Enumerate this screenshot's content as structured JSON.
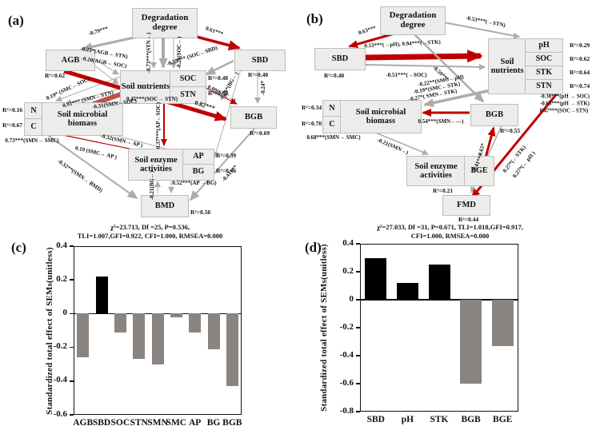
{
  "panel_a": {
    "label": "(a)",
    "boxes": {
      "degradation": "Degradation degree",
      "agb": "AGB",
      "sbd": "SBD",
      "soil_nutrients": "Soil nutrients",
      "soc": "SOC",
      "stn": "STN",
      "n": "N",
      "c": "C",
      "smb": "Soil microbial biomass",
      "bgb": "BGB",
      "enzyme": "Soil enzyme activities",
      "ap": "AP",
      "bg": "BG",
      "bmd": "BMD"
    },
    "r2": {
      "agb": "R²=0.62",
      "sbd": "R²=0.40",
      "soc": "R²=0.48",
      "stn": "R²=0.79",
      "n": "R²=0.16",
      "c": "R²=0.67",
      "bgb": "R²=0.69",
      "ap": "R²=0.39",
      "bg": "R²=0.46",
      "bmd": "R²=0.50"
    },
    "edges": {
      "deg_agb": "-0.79***",
      "deg_sbd": "0.61***",
      "agb_stn": "-0.23*(AGB→ STN)",
      "agb_soc": "-0.20(AGB→ SOC)",
      "deg_stn": "-0.73***(STN←)",
      "deg_soc": "-0.26(SOC←)",
      "sbd_soc": "-0.59*** (SOC←SBD)",
      "smc_soc": "0.19* (SMC←SOC)",
      "smn_stn": "0.91*** (SMN←STN)",
      "smn_soc": "-0.31(SMN←SOC)",
      "soc_stn": "0.45***(SOC→ STN)",
      "soc_bgb": "0.09(SOC→)",
      "sbd_bg": "-0.26*(BG←)",
      "sbd_bgb": "-0.24*",
      "agb_bgb": "0.82***",
      "smn_smc": "0.73***(SMN→ SMC)",
      "smn_ap": "-0.32(SMN→ AP )",
      "smc_ap": "0.19 (SMC→ AP )",
      "ap_soc": "0.37***(AP←SOC)",
      "ap_bg": "0.52***(AP →BG)",
      "bg_bmd": "-0.21(BG←)",
      "smn_bmd": "-0.32**(SMN→ BMD)",
      "bgb_bmd": "-0.41***"
    },
    "stats1": "χ²=23.713, Df =25, P=0.536,",
    "stats2": "TLI=1.007,GFI=0.922, CFI=1.000, RMSEA=0.000"
  },
  "panel_b": {
    "label": "(b)",
    "boxes": {
      "degradation": "Degradation degree",
      "sbd": "SBD",
      "soil_nutrients": "Soil nutrients",
      "ph": "pH",
      "soc": "SOC",
      "stk": "STK",
      "stn": "STN",
      "n": "N",
      "c": "C",
      "smb": "Soil microbial biomass",
      "bgb": "BGB",
      "enzyme": "Soil enzyme activities",
      "bge": "BGE",
      "fmd": "FMD"
    },
    "r2": {
      "sbd": "R²=0.40",
      "ph": "R²=0.29",
      "soc": "R²=0.62",
      "stk": "R²=0.64",
      "stn": "R²=0.74",
      "n": "R²=0.34",
      "c": "R²=0.70",
      "bgb": "R²=0.55",
      "bge": "R²=0.21",
      "fmd": "R²=0.44"
    },
    "edges": {
      "deg_sbd": "0.63***",
      "deg_stn": "-0.53***(→STN)",
      "sbd_ph_stk": "0.53***(→pH), 0.94***(→STK)",
      "sbd_soc": "-0.51***(→SOC)",
      "deg_bgb": "-0.59***",
      "smc_ph": "-0.22**(SMC←pH)",
      "smc_stk": "-0.19*(SMC←STK)",
      "smn_stk": "-0.27*( SMN←STK)",
      "bgb_smn": "0.54***(SMN←—)",
      "smn_smc": "0.68***(SMN→ SMC)",
      "smn_enz": "-0.21(SMN→)",
      "bge_bgb": "0.65*",
      "bgb_fmd": "-0.41***",
      "fmd_stk": "0.27*(←STK)",
      "fmd_ph": "0.27*(← pH )",
      "note1": "-0.38***(pH → SOC)",
      "note2": "-0.63***(pH → STK)",
      "note3": "0.47***(SOC→STN)"
    },
    "stats1": "χ²=27.033, Df =31, P=0.671, TLI=1.018,GFI=0.917,",
    "stats2": "CFI=1.000, RMSEA=0.000"
  },
  "chart_data": [
    {
      "id": "c",
      "type": "bar",
      "panel_label": "(c)",
      "categories": [
        "AGB",
        "SBD",
        "SOC",
        "STN",
        "SMN",
        "SMC",
        "AP",
        "BG",
        "BGB"
      ],
      "values": [
        -0.26,
        0.22,
        -0.11,
        -0.27,
        -0.3,
        -0.02,
        -0.11,
        -0.21,
        -0.43
      ],
      "bar_colors": [
        "#8a8481",
        "#000000",
        "#8a8481",
        "#8a8481",
        "#8a8481",
        "#8a8481",
        "#8a8481",
        "#8a8481",
        "#8a8481"
      ],
      "title": "",
      "xlabel": "",
      "ylabel": "Standardized total effect of SEMs(unitless)",
      "ylim": [
        -0.6,
        0.4
      ],
      "yticks": [
        "0.4",
        "0.2",
        "0",
        "-0.2",
        "-0.4",
        "-0.6"
      ],
      "grid": false,
      "legend": null
    },
    {
      "id": "d",
      "type": "bar",
      "panel_label": "(d)",
      "categories": [
        "SBD",
        "pH",
        "STK",
        "BGB",
        "BGE"
      ],
      "values": [
        0.3,
        0.12,
        0.25,
        -0.6,
        -0.33
      ],
      "bar_colors": [
        "#000000",
        "#000000",
        "#000000",
        "#8a8481",
        "#8a8481"
      ],
      "title": "",
      "xlabel": "",
      "ylabel": "Standardized total effect of SEMs(unitless)",
      "ylim": [
        -0.8,
        0.4
      ],
      "yticks": [
        "0.4",
        "0.2",
        "0",
        "-0.2",
        "-0.4",
        "-0.6",
        "-0.8"
      ],
      "grid": false,
      "legend": null
    }
  ],
  "colors": {
    "red_path": "#c00000",
    "salmon_path": "#c0504d",
    "gray_path": "#aeaba9",
    "bar_gray": "#8a8481",
    "bar_black": "#000000"
  }
}
